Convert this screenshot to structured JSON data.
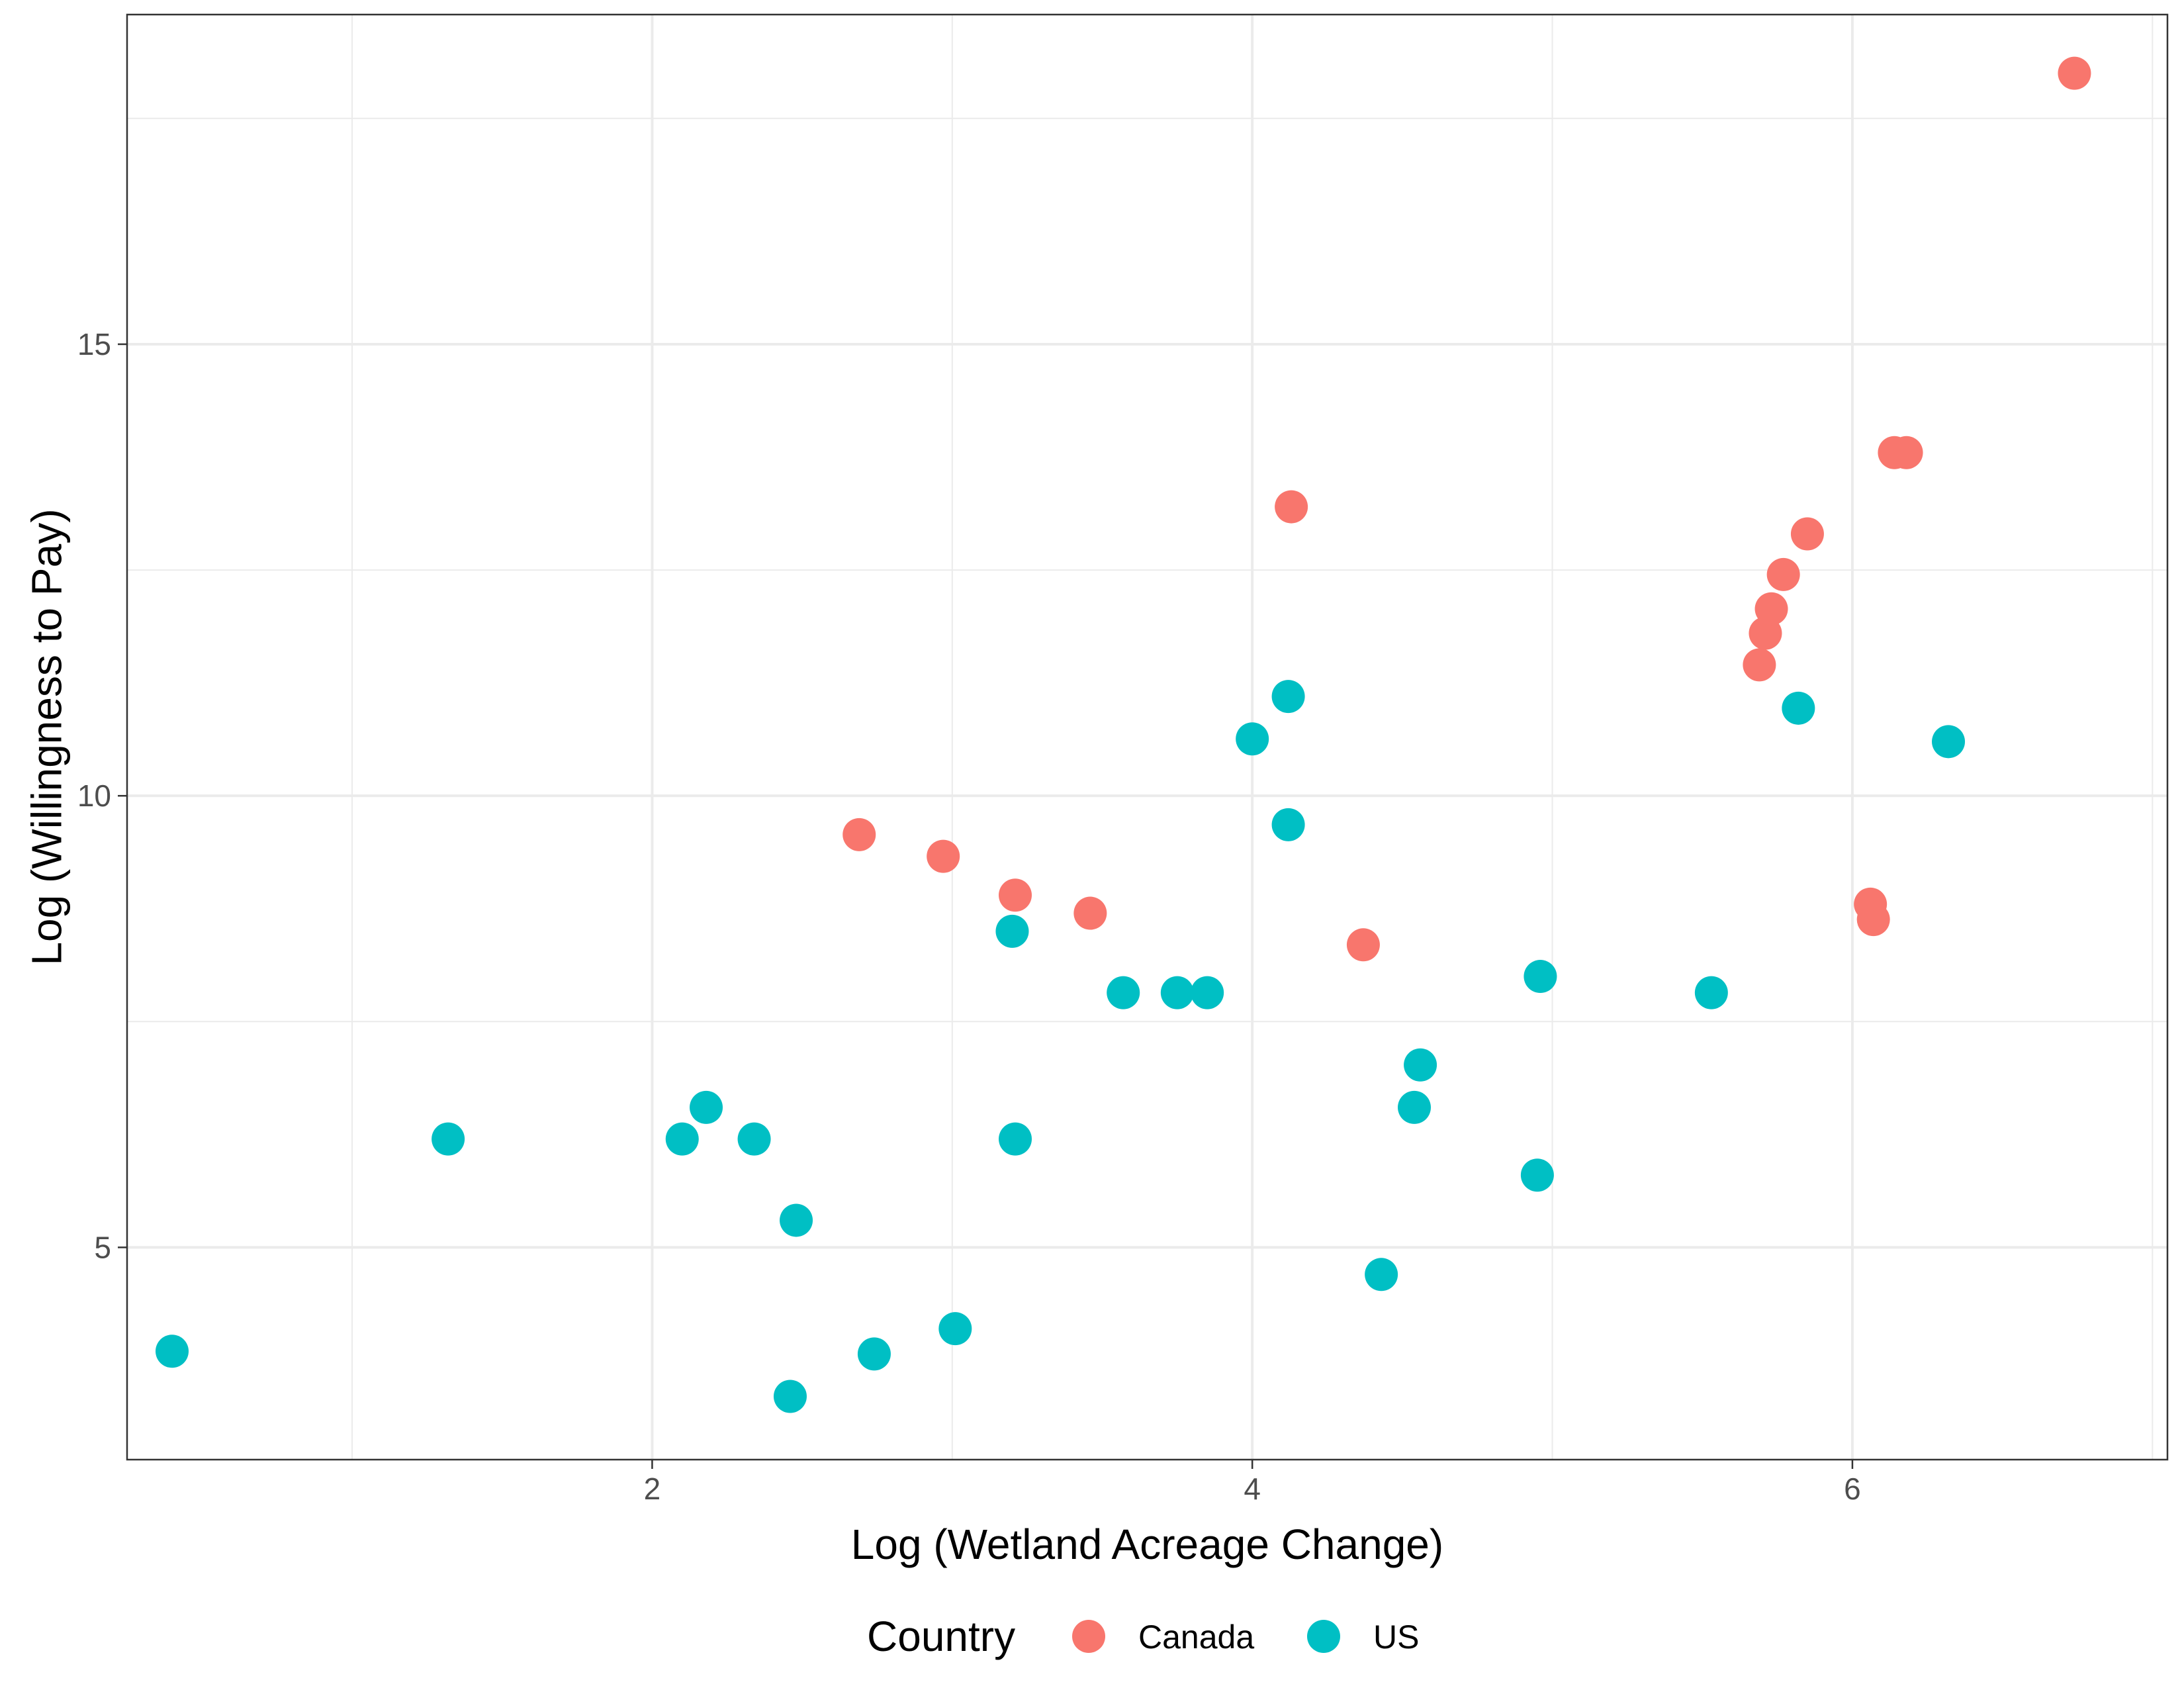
{
  "chart_data": {
    "type": "scatter",
    "title": "",
    "xlabel": "Log (Wetland Acreage Change)",
    "ylabel": "Log (Willingness to Pay)",
    "xlim": [
      0.25,
      7.05
    ],
    "ylim": [
      2.65,
      18.65
    ],
    "x_ticks": [
      2,
      4,
      6
    ],
    "y_ticks": [
      5,
      10,
      15
    ],
    "x_tick_labels": [
      "2",
      "4",
      "6"
    ],
    "y_tick_labels": [
      "5",
      "10",
      "15"
    ],
    "grid": true,
    "legend": {
      "title": "Country",
      "position": "bottom"
    },
    "series": [
      {
        "name": "Canada",
        "color": "#F8766D",
        "points": [
          [
            2.69,
            9.57
          ],
          [
            2.97,
            9.33
          ],
          [
            3.21,
            8.9
          ],
          [
            3.46,
            8.7
          ],
          [
            4.13,
            13.2
          ],
          [
            4.37,
            8.35
          ],
          [
            5.69,
            11.45
          ],
          [
            5.71,
            11.8
          ],
          [
            5.73,
            12.07
          ],
          [
            5.77,
            12.45
          ],
          [
            5.85,
            12.9
          ],
          [
            6.06,
            8.8
          ],
          [
            6.07,
            8.63
          ],
          [
            6.14,
            13.8
          ],
          [
            6.18,
            13.8
          ],
          [
            6.74,
            18.0
          ]
        ]
      },
      {
        "name": "US",
        "color": "#00BFC4",
        "points": [
          [
            0.4,
            3.85
          ],
          [
            1.32,
            6.2
          ],
          [
            2.1,
            6.2
          ],
          [
            2.18,
            6.55
          ],
          [
            2.34,
            6.2
          ],
          [
            2.46,
            3.35
          ],
          [
            2.48,
            5.3
          ],
          [
            2.74,
            3.82
          ],
          [
            3.01,
            4.1
          ],
          [
            3.2,
            8.5
          ],
          [
            3.21,
            6.2
          ],
          [
            3.57,
            7.82
          ],
          [
            3.75,
            7.82
          ],
          [
            3.85,
            7.82
          ],
          [
            4.0,
            10.63
          ],
          [
            4.12,
            11.1
          ],
          [
            4.12,
            9.68
          ],
          [
            4.43,
            4.7
          ],
          [
            4.54,
            6.55
          ],
          [
            4.56,
            7.02
          ],
          [
            4.95,
            5.8
          ],
          [
            4.96,
            8.0
          ],
          [
            5.53,
            7.82
          ],
          [
            5.82,
            10.97
          ],
          [
            6.32,
            10.6
          ]
        ]
      }
    ]
  }
}
